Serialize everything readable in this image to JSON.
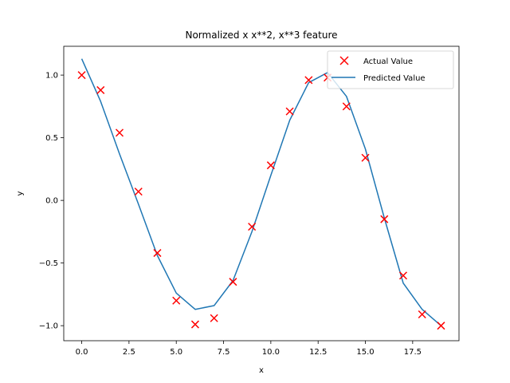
{
  "chart_data": {
    "type": "line",
    "title": "Normalized x x**2, x**3 feature",
    "xlabel": "x",
    "ylabel": "y",
    "xlim": [
      -0.95,
      19.95
    ],
    "ylim": [
      -1.12,
      1.23
    ],
    "xticks": [
      0.0,
      2.5,
      5.0,
      7.5,
      10.0,
      12.5,
      15.0,
      17.5
    ],
    "xtick_labels": [
      "0.0",
      "2.5",
      "5.0",
      "7.5",
      "10.0",
      "12.5",
      "15.0",
      "17.5"
    ],
    "yticks": [
      -1.0,
      -0.5,
      0.0,
      0.5,
      1.0
    ],
    "ytick_labels": [
      "−1.0",
      "−0.5",
      "0.0",
      "0.5",
      "1.0"
    ],
    "legend_position": "top-right",
    "grid": false,
    "series": [
      {
        "name": "Actual Value",
        "kind": "scatter",
        "marker": "x",
        "color": "#ff0000",
        "x": [
          0,
          1,
          2,
          3,
          4,
          5,
          6,
          7,
          8,
          9,
          10,
          11,
          12,
          13,
          14,
          15,
          16,
          17,
          18,
          19
        ],
        "y": [
          1.0,
          0.88,
          0.54,
          0.07,
          -0.42,
          -0.8,
          -0.99,
          -0.94,
          -0.65,
          -0.21,
          0.28,
          0.71,
          0.96,
          0.98,
          0.75,
          0.34,
          -0.15,
          -0.6,
          -0.91,
          -1.0
        ]
      },
      {
        "name": "Predicted Value",
        "kind": "line",
        "color": "#1f77b4",
        "x": [
          0,
          1,
          2,
          3,
          4,
          5,
          6,
          7,
          8,
          9,
          10,
          11,
          12,
          13,
          14,
          15,
          16,
          17,
          18,
          19
        ],
        "y": [
          1.13,
          0.79,
          0.37,
          -0.03,
          -0.44,
          -0.74,
          -0.87,
          -0.84,
          -0.64,
          -0.25,
          0.2,
          0.64,
          0.94,
          1.02,
          0.83,
          0.41,
          -0.14,
          -0.66,
          -0.87,
          -1.0
        ]
      }
    ]
  }
}
